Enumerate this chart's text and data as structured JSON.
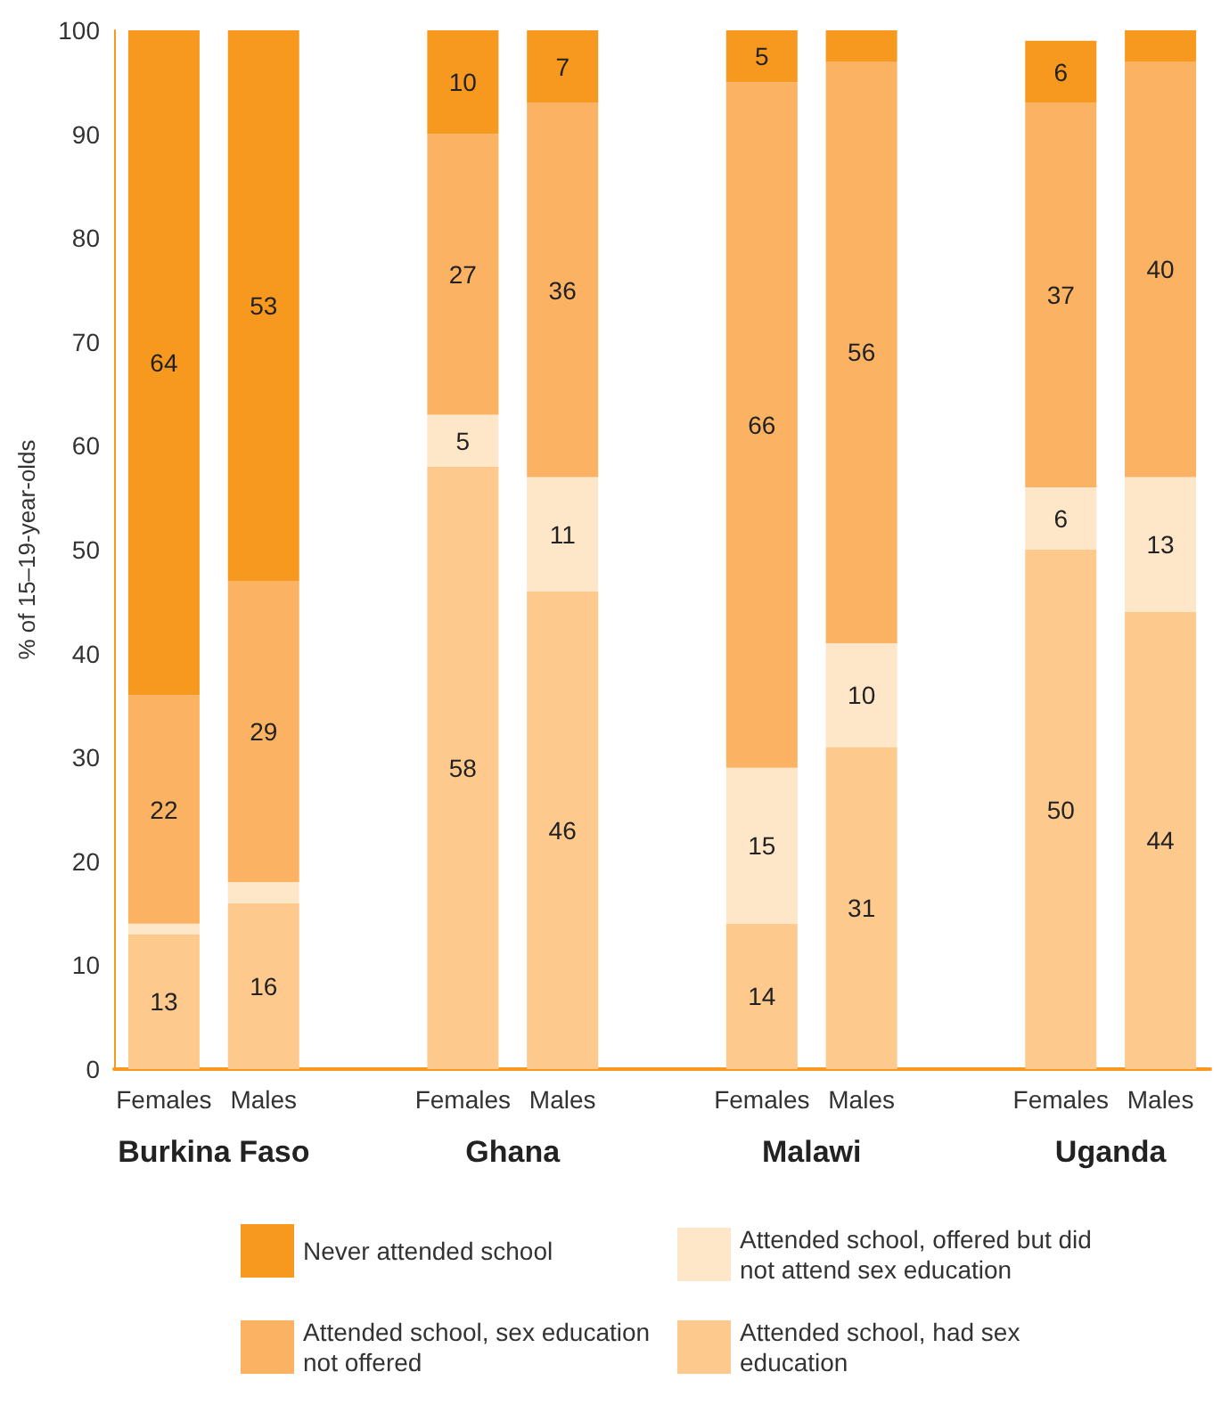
{
  "chart_data": {
    "type": "bar",
    "stacked": true,
    "ylabel": "% of 15–19-year-olds",
    "categories": [
      "Females",
      "Males",
      null,
      "Females",
      "Males",
      null,
      "Females",
      "Males",
      null,
      "Females",
      "Males"
    ],
    "annotations": [
      "Burkina Faso",
      "Ghana",
      "Malawi",
      "Uganda"
    ],
    "series": [
      {
        "name": "Attended school, had sex education",
        "color": "#fdc98c",
        "values": [
          13,
          16,
          null,
          58,
          46,
          null,
          14,
          31,
          null,
          50,
          44
        ],
        "value_labels": [
          "13",
          "16",
          null,
          "58",
          "46",
          null,
          "14",
          "31",
          null,
          "50",
          "44"
        ]
      },
      {
        "name": "Attended school, offered but did not attend sex education",
        "color": "#fee6c8",
        "values": [
          1,
          2,
          null,
          5,
          11,
          null,
          15,
          10,
          null,
          6,
          13
        ],
        "value_labels": [
          null,
          null,
          null,
          "5",
          "11",
          null,
          "15",
          "10",
          null,
          "6",
          "13"
        ]
      },
      {
        "name": "Attended school, sex education not offered",
        "color": "#fbb262",
        "values": [
          22,
          29,
          null,
          27,
          36,
          null,
          66,
          56,
          null,
          37,
          40
        ],
        "value_labels": [
          "22",
          "29",
          null,
          "27",
          "36",
          null,
          "66",
          "56",
          null,
          "37",
          "40"
        ]
      },
      {
        "name": "Never attended school",
        "color": "#f7981f",
        "values": [
          64,
          53,
          null,
          10,
          7,
          null,
          5,
          3,
          null,
          6,
          3
        ],
        "value_labels": [
          "64",
          "53",
          null,
          "10",
          "7",
          null,
          "5",
          null,
          null,
          "6",
          null
        ]
      }
    ],
    "ylim": [
      0,
      100
    ],
    "yticks": [
      0,
      10,
      20,
      30,
      40,
      50,
      60,
      70,
      80,
      90,
      100
    ],
    "grid": false,
    "legend": "bottom"
  }
}
